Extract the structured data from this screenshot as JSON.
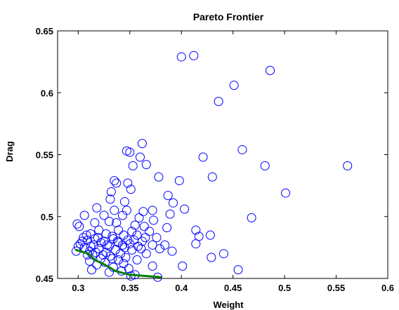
{
  "chart_data": {
    "type": "scatter",
    "title": "Pareto Frontier",
    "xlabel": "Weight",
    "ylabel": "Drag",
    "xlim": [
      0.28,
      0.6
    ],
    "ylim": [
      0.45,
      0.65
    ],
    "xticks": [
      0.3,
      0.35,
      0.4,
      0.45,
      0.5,
      0.55,
      0.6
    ],
    "xtick_labels": [
      "0.3",
      "0.35",
      "0.4",
      "0.45",
      "0.5",
      "0.55",
      "0.6"
    ],
    "yticks": [
      0.45,
      0.5,
      0.55,
      0.6,
      0.65
    ],
    "ytick_labels": [
      "0.45",
      "0.5",
      "0.55",
      "0.6",
      "0.65"
    ],
    "grid": false,
    "colors": {
      "points": "#0000ff",
      "frontier": "#008000",
      "axes": "#000000"
    },
    "series": [
      {
        "type": "scatter",
        "marker": "circle",
        "points": [
          [
            0.4,
            0.629
          ],
          [
            0.412,
            0.63
          ],
          [
            0.486,
            0.618
          ],
          [
            0.451,
            0.606
          ],
          [
            0.436,
            0.593
          ],
          [
            0.362,
            0.559
          ],
          [
            0.347,
            0.553
          ],
          [
            0.35,
            0.552
          ],
          [
            0.459,
            0.554
          ],
          [
            0.36,
            0.548
          ],
          [
            0.421,
            0.548
          ],
          [
            0.353,
            0.541
          ],
          [
            0.366,
            0.542
          ],
          [
            0.481,
            0.541
          ],
          [
            0.561,
            0.541
          ],
          [
            0.43,
            0.532
          ],
          [
            0.378,
            0.532
          ],
          [
            0.335,
            0.529
          ],
          [
            0.337,
            0.527
          ],
          [
            0.348,
            0.527
          ],
          [
            0.398,
            0.529
          ],
          [
            0.332,
            0.52
          ],
          [
            0.351,
            0.522
          ],
          [
            0.387,
            0.517
          ],
          [
            0.501,
            0.519
          ],
          [
            0.392,
            0.511
          ],
          [
            0.403,
            0.506
          ],
          [
            0.468,
            0.499
          ],
          [
            0.331,
            0.514
          ],
          [
            0.345,
            0.512
          ],
          [
            0.335,
            0.505
          ],
          [
            0.347,
            0.505
          ],
          [
            0.363,
            0.504
          ],
          [
            0.372,
            0.505
          ],
          [
            0.389,
            0.502
          ],
          [
            0.318,
            0.507
          ],
          [
            0.306,
            0.501
          ],
          [
            0.325,
            0.501
          ],
          [
            0.343,
            0.501
          ],
          [
            0.359,
            0.499
          ],
          [
            0.373,
            0.497
          ],
          [
            0.299,
            0.494
          ],
          [
            0.301,
            0.492
          ],
          [
            0.316,
            0.495
          ],
          [
            0.33,
            0.496
          ],
          [
            0.337,
            0.495
          ],
          [
            0.355,
            0.493
          ],
          [
            0.364,
            0.492
          ],
          [
            0.386,
            0.491
          ],
          [
            0.414,
            0.489
          ],
          [
            0.32,
            0.489
          ],
          [
            0.339,
            0.489
          ],
          [
            0.352,
            0.488
          ],
          [
            0.369,
            0.488
          ],
          [
            0.312,
            0.486
          ],
          [
            0.327,
            0.486
          ],
          [
            0.344,
            0.485
          ],
          [
            0.357,
            0.485
          ],
          [
            0.365,
            0.483
          ],
          [
            0.376,
            0.483
          ],
          [
            0.417,
            0.484
          ],
          [
            0.428,
            0.485
          ],
          [
            0.305,
            0.483
          ],
          [
            0.319,
            0.483
          ],
          [
            0.334,
            0.482
          ],
          [
            0.348,
            0.481
          ],
          [
            0.362,
            0.48
          ],
          [
            0.309,
            0.481
          ],
          [
            0.325,
            0.48
          ],
          [
            0.339,
            0.479
          ],
          [
            0.35,
            0.478
          ],
          [
            0.372,
            0.477
          ],
          [
            0.384,
            0.477
          ],
          [
            0.414,
            0.478
          ],
          [
            0.302,
            0.478
          ],
          [
            0.315,
            0.477
          ],
          [
            0.33,
            0.476
          ],
          [
            0.345,
            0.475
          ],
          [
            0.358,
            0.476
          ],
          [
            0.306,
            0.475
          ],
          [
            0.32,
            0.474
          ],
          [
            0.336,
            0.473
          ],
          [
            0.352,
            0.473
          ],
          [
            0.379,
            0.474
          ],
          [
            0.311,
            0.472
          ],
          [
            0.327,
            0.471
          ],
          [
            0.341,
            0.47
          ],
          [
            0.366,
            0.47
          ],
          [
            0.391,
            0.472
          ],
          [
            0.441,
            0.47
          ],
          [
            0.298,
            0.472
          ],
          [
            0.314,
            0.469
          ],
          [
            0.331,
            0.468
          ],
          [
            0.346,
            0.467
          ],
          [
            0.322,
            0.466
          ],
          [
            0.339,
            0.465
          ],
          [
            0.357,
            0.465
          ],
          [
            0.429,
            0.467
          ],
          [
            0.311,
            0.464
          ],
          [
            0.326,
            0.463
          ],
          [
            0.344,
            0.462
          ],
          [
            0.372,
            0.46
          ],
          [
            0.401,
            0.46
          ],
          [
            0.318,
            0.461
          ],
          [
            0.334,
            0.459
          ],
          [
            0.349,
            0.458
          ],
          [
            0.455,
            0.457
          ],
          [
            0.313,
            0.457
          ],
          [
            0.342,
            0.456
          ],
          [
            0.33,
            0.455
          ],
          [
            0.355,
            0.453
          ],
          [
            0.351,
            0.452
          ],
          [
            0.377,
            0.451
          ],
          [
            0.304,
            0.48
          ],
          [
            0.308,
            0.485
          ],
          [
            0.316,
            0.482
          ],
          [
            0.322,
            0.479
          ],
          [
            0.328,
            0.477
          ],
          [
            0.333,
            0.484
          ],
          [
            0.338,
            0.48
          ],
          [
            0.343,
            0.477
          ],
          [
            0.354,
            0.481
          ],
          [
            0.361,
            0.474
          ],
          [
            0.312,
            0.476
          ],
          [
            0.317,
            0.471
          ],
          [
            0.324,
            0.469
          ],
          [
            0.333,
            0.466
          ],
          [
            0.309,
            0.469
          ],
          [
            0.3,
            0.476
          ]
        ]
      },
      {
        "type": "line",
        "points": [
          [
            0.298,
            0.473
          ],
          [
            0.31,
            0.47
          ],
          [
            0.316,
            0.465
          ],
          [
            0.326,
            0.461
          ],
          [
            0.336,
            0.456
          ],
          [
            0.35,
            0.453
          ],
          [
            0.365,
            0.452
          ],
          [
            0.38,
            0.451
          ]
        ]
      }
    ]
  }
}
